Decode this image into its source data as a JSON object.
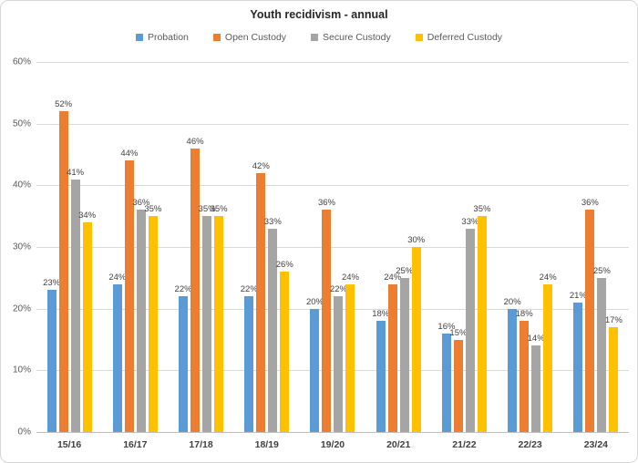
{
  "title": "Youth recidivism - annual",
  "chart_data": {
    "type": "bar",
    "title": "Youth recidivism - annual",
    "categories": [
      "15/16",
      "16/17",
      "17/18",
      "18/19",
      "19/20",
      "20/21",
      "21/22",
      "22/23",
      "23/24"
    ],
    "series": [
      {
        "name": "Probation",
        "color": "#5B9BD5",
        "values": [
          23,
          24,
          22,
          22,
          20,
          18,
          16,
          20,
          21
        ]
      },
      {
        "name": "Open Custody",
        "color": "#ED7D31",
        "values": [
          52,
          44,
          46,
          42,
          36,
          24,
          15,
          18,
          36
        ]
      },
      {
        "name": "Secure Custody",
        "color": "#A5A5A5",
        "values": [
          41,
          36,
          35,
          33,
          22,
          25,
          33,
          14,
          25
        ]
      },
      {
        "name": "Deferred Custody",
        "color": "#FFC000",
        "values": [
          34,
          35,
          35,
          26,
          24,
          30,
          35,
          24,
          17
        ]
      }
    ],
    "xlabel": "",
    "ylabel": "",
    "ylim": [
      0,
      60
    ],
    "ytick_step": 10,
    "ytick_suffix": "%",
    "data_label_suffix": "%",
    "grid": true,
    "legend_position": "top",
    "colors": {
      "gridline": "#d9d9d9",
      "axis_line": "#bfbfbf",
      "title_text": "#262626",
      "tick_text": "#595959",
      "category_text": "#404040",
      "data_label_text": "#404040"
    }
  }
}
